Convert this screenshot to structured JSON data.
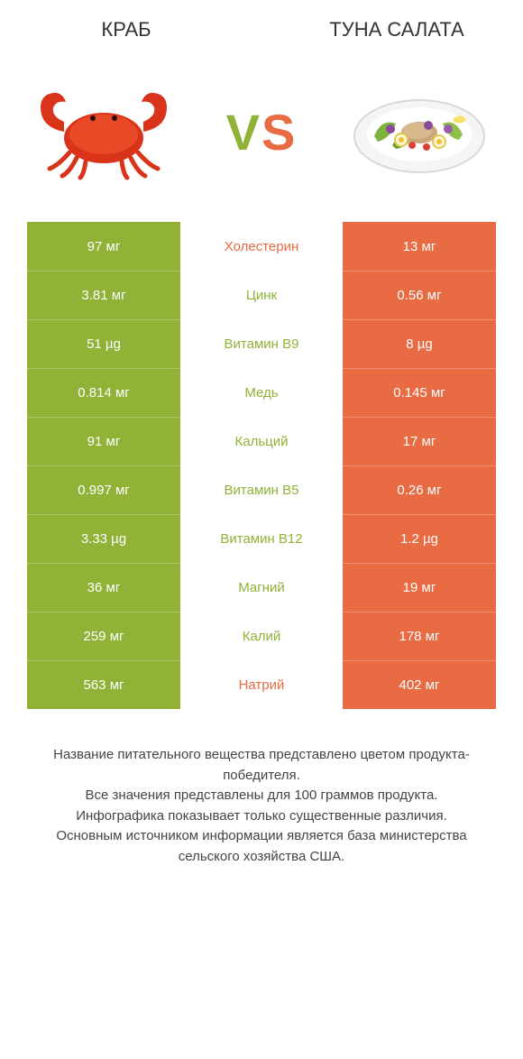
{
  "header": {
    "left_title": "КРАБ",
    "right_title": "ТУНА САЛАТА"
  },
  "vs": {
    "v": "V",
    "s": "S"
  },
  "colors": {
    "left_bg": "#8fb237",
    "right_bg": "#e86b44",
    "left_text": "#8fb237",
    "right_text": "#e86b44",
    "row_label_fontsize": 15,
    "cell_fontsize": 15,
    "background": "#ffffff",
    "title_color": "#333333"
  },
  "rows": [
    {
      "left": "97 мг",
      "label": "Холестерин",
      "right": "13 мг",
      "winner": "right"
    },
    {
      "left": "3.81 мг",
      "label": "Цинк",
      "right": "0.56 мг",
      "winner": "left"
    },
    {
      "left": "51 µg",
      "label": "Витамин B9",
      "right": "8 µg",
      "winner": "left"
    },
    {
      "left": "0.814 мг",
      "label": "Медь",
      "right": "0.145 мг",
      "winner": "left"
    },
    {
      "left": "91 мг",
      "label": "Кальций",
      "right": "17 мг",
      "winner": "left"
    },
    {
      "left": "0.997 мг",
      "label": "Витамин B5",
      "right": "0.26 мг",
      "winner": "left"
    },
    {
      "left": "3.33 µg",
      "label": "Витамин B12",
      "right": "1.2 µg",
      "winner": "left"
    },
    {
      "left": "36 мг",
      "label": "Магний",
      "right": "19 мг",
      "winner": "left"
    },
    {
      "left": "259 мг",
      "label": "Калий",
      "right": "178 мг",
      "winner": "left"
    },
    {
      "left": "563 мг",
      "label": "Натрий",
      "right": "402 мг",
      "winner": "right"
    }
  ],
  "footer": {
    "line1": "Название питательного вещества представлено цветом продукта-победителя.",
    "line2": "Все значения представлены для 100 граммов продукта.",
    "line3": "Инфографика показывает только существенные различия.",
    "line4": "Основным источником информации является база министерства сельского хозяйства США."
  },
  "images": {
    "left_alt": "crab-icon",
    "right_alt": "tuna-salad-icon"
  }
}
